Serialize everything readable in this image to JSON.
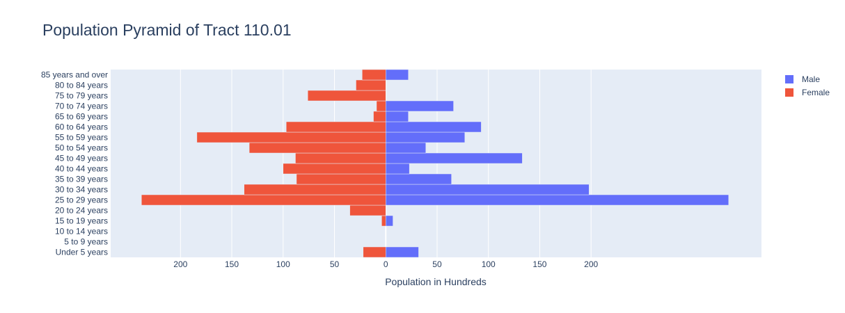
{
  "chart_data": {
    "type": "bar",
    "orientation": "horizontal",
    "title": "Population Pyramid of Tract 110.01",
    "xlabel": "Population in Hundreds",
    "ylabel": "",
    "categories": [
      "Under 5 years",
      "5 to 9 years",
      "10 to 14 years",
      "15 to 19 years",
      "20 to 24 years",
      "25 to 29 years",
      "30 to 34 years",
      "35 to 39 years",
      "40 to 44 years",
      "45 to 49 years",
      "50 to 54 years",
      "55 to 59 years",
      "60 to 64 years",
      "65 to 69 years",
      "70 to 74 years",
      "75 to 79 years",
      "80 to 84 years",
      "85 years and over"
    ],
    "series": [
      {
        "name": "Male",
        "color": "#636efa",
        "values": [
          32,
          0,
          0,
          7,
          0,
          334,
          198,
          64,
          23,
          133,
          39,
          77,
          93,
          22,
          66,
          0,
          0,
          22
        ]
      },
      {
        "name": "Female",
        "color": "#ef553b",
        "values": [
          22,
          0,
          0,
          4,
          35,
          238,
          138,
          87,
          100,
          88,
          133,
          184,
          97,
          12,
          9,
          76,
          29,
          23
        ]
      }
    ],
    "female_plotted_negative": true,
    "x_tick_labels": [
      "200",
      "150",
      "100",
      "50",
      "0",
      "50",
      "100",
      "150",
      "200"
    ],
    "x_tick_values": [
      -200,
      -150,
      -100,
      -50,
      0,
      50,
      100,
      150,
      200
    ],
    "xlim": [
      -268,
      366
    ],
    "legend_position": "top-right",
    "grid": true,
    "plot_background": "#e5ecf6"
  }
}
